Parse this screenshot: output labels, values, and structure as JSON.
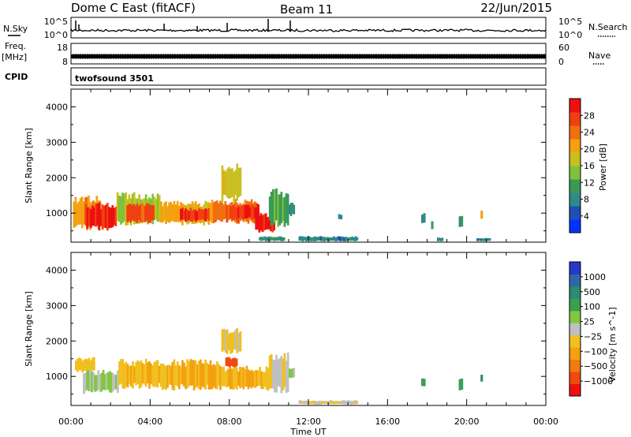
{
  "header": {
    "station": "Dome C East (fitACF)",
    "beam": "Beam 11",
    "date": "22/Jun/2015"
  },
  "noise_panel": {
    "left_label": "N.Sky",
    "left_ticks": [
      "10^5",
      "10^0"
    ],
    "right_label": "N.Search",
    "right_ticks": [
      "10^5",
      "10^0"
    ]
  },
  "freq_panel": {
    "left_label_top": "Freq.",
    "left_label_bottom": "[MHz]",
    "left_ticks": [
      "18",
      "8"
    ],
    "right_label": "Nave",
    "right_ticks": [
      "60",
      "0"
    ]
  },
  "cpid_panel": {
    "label": "CPID",
    "program": "twofsound 3501"
  },
  "chart_data": [
    {
      "type": "heatmap",
      "name": "power",
      "ylabel": "Slant Range [km]",
      "y_ticks": [
        1000,
        2000,
        3000,
        4000
      ],
      "ylim": [
        180,
        4500
      ],
      "xlim_hours": [
        0,
        24
      ],
      "colorbar_label": "Power [dB]",
      "colorbar_ticks": [
        "4",
        "8",
        "12",
        "16",
        "20",
        "24",
        "28"
      ],
      "colorbar_colors": [
        "#0033ff",
        "#1f4fb5",
        "#2f8a8a",
        "#3a9a55",
        "#7fc23a",
        "#c8c020",
        "#f5a010",
        "#f07010",
        "#f04010",
        "#ee1010"
      ],
      "color_range": [
        0,
        32
      ],
      "regions": [
        {
          "t0": 0.1,
          "t1": 1.5,
          "r0": 500,
          "r1": 1500,
          "v": 22
        },
        {
          "t0": 0.7,
          "t1": 2.3,
          "r0": 500,
          "r1": 1300,
          "v": 30
        },
        {
          "t0": 2.3,
          "t1": 4.5,
          "r0": 650,
          "r1": 1600,
          "v": 16
        },
        {
          "t0": 2.8,
          "t1": 4.2,
          "r0": 700,
          "r1": 1300,
          "v": 27
        },
        {
          "t0": 4.5,
          "t1": 7.0,
          "r0": 650,
          "r1": 1350,
          "v": 20
        },
        {
          "t0": 5.5,
          "t1": 7.5,
          "r0": 750,
          "r1": 1150,
          "v": 28
        },
        {
          "t0": 7.0,
          "t1": 9.5,
          "r0": 700,
          "r1": 1400,
          "v": 24
        },
        {
          "t0": 8.0,
          "t1": 9.5,
          "r0": 800,
          "r1": 1250,
          "v": 29
        },
        {
          "t0": 9.3,
          "t1": 10.3,
          "r0": 450,
          "r1": 1000,
          "v": 30
        },
        {
          "t0": 7.6,
          "t1": 8.6,
          "r0": 1300,
          "r1": 2400,
          "v": 18
        },
        {
          "t0": 10.0,
          "t1": 11.0,
          "r0": 600,
          "r1": 1700,
          "v": 12
        },
        {
          "t0": 11.0,
          "t1": 11.3,
          "r0": 900,
          "r1": 1300,
          "v": 9
        },
        {
          "t0": 9.5,
          "t1": 10.8,
          "r0": 200,
          "r1": 350,
          "v": 9
        },
        {
          "t0": 11.5,
          "t1": 14.5,
          "r0": 200,
          "r1": 350,
          "v": 8
        },
        {
          "t0": 13.5,
          "t1": 13.7,
          "r0": 800,
          "r1": 1000,
          "v": 9
        },
        {
          "t0": 17.7,
          "t1": 17.9,
          "r0": 700,
          "r1": 1000,
          "v": 9
        },
        {
          "t0": 18.2,
          "t1": 18.3,
          "r0": 500,
          "r1": 800,
          "v": 10
        },
        {
          "t0": 19.6,
          "t1": 19.8,
          "r0": 600,
          "r1": 1000,
          "v": 10
        },
        {
          "t0": 20.7,
          "t1": 20.8,
          "r0": 800,
          "r1": 1100,
          "v": 20
        },
        {
          "t0": 18.5,
          "t1": 18.8,
          "r0": 200,
          "r1": 320,
          "v": 8
        },
        {
          "t0": 20.5,
          "t1": 21.2,
          "r0": 200,
          "r1": 300,
          "v": 8
        }
      ]
    },
    {
      "type": "heatmap",
      "name": "velocity",
      "ylabel": "Slant Range [km]",
      "y_ticks": [
        1000,
        2000,
        3000,
        4000
      ],
      "ylim": [
        180,
        4500
      ],
      "xlim_hours": [
        0,
        24
      ],
      "colorbar_label": "Velocity [m s^-1]",
      "colorbar_ticks": [
        "1000",
        "500",
        "100",
        "25",
        "−25",
        "−100",
        "−500",
        "−1000"
      ],
      "colorbar_colors": [
        "#2838c8",
        "#2b68a8",
        "#2e8a70",
        "#3aa050",
        "#80c840",
        "#c0c0c0",
        "#f0c020",
        "#f5a010",
        "#f07a10",
        "#f04a10",
        "#ee1010"
      ],
      "color_range": [
        -1200,
        1200
      ],
      "regions": [
        {
          "t0": 0.2,
          "t1": 1.2,
          "r0": 1100,
          "r1": 1550,
          "v": -250
        },
        {
          "t0": 0.6,
          "t1": 2.4,
          "r0": 500,
          "r1": 1200,
          "v": 150
        },
        {
          "t0": 2.4,
          "t1": 4.5,
          "r0": 650,
          "r1": 1500,
          "v": -250
        },
        {
          "t0": 4.5,
          "t1": 7.5,
          "r0": 600,
          "r1": 1500,
          "v": -320
        },
        {
          "t0": 7.5,
          "t1": 10.0,
          "r0": 600,
          "r1": 1300,
          "v": -300
        },
        {
          "t0": 7.8,
          "t1": 8.4,
          "r0": 1250,
          "r1": 1550,
          "v": -900
        },
        {
          "t0": 7.6,
          "t1": 8.6,
          "r0": 1600,
          "r1": 2400,
          "v": -150
        },
        {
          "t0": 10.0,
          "t1": 11.0,
          "r0": 500,
          "r1": 1700,
          "v": -90
        },
        {
          "t0": 11.0,
          "t1": 11.3,
          "r0": 900,
          "r1": 1300,
          "v": 150
        },
        {
          "t0": 11.5,
          "t1": 14.5,
          "r0": 200,
          "r1": 330,
          "v": -60
        },
        {
          "t0": 17.7,
          "t1": 17.9,
          "r0": 700,
          "r1": 1000,
          "v": 400
        },
        {
          "t0": 19.6,
          "t1": 19.8,
          "r0": 600,
          "r1": 1000,
          "v": 400
        },
        {
          "t0": 20.7,
          "t1": 20.8,
          "r0": 800,
          "r1": 1100,
          "v": 700
        }
      ]
    }
  ],
  "time_axis": {
    "label": "Time UT",
    "ticks": [
      "00:00",
      "04:00",
      "08:00",
      "12:00",
      "16:00",
      "20:00",
      "00:00"
    ]
  }
}
